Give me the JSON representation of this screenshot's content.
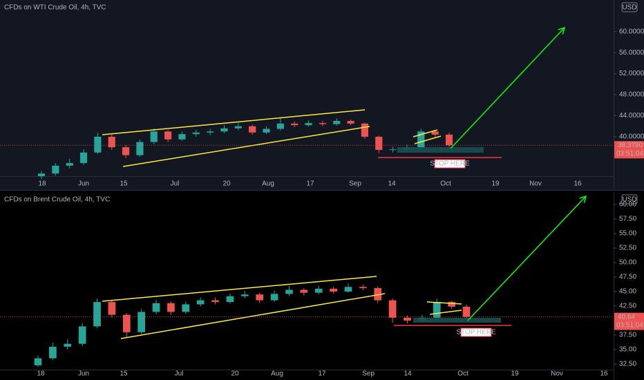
{
  "chart_data": [
    {
      "type": "candlestick",
      "title": "CFDs on WTI Crude Oil, 4h, TVC",
      "currency": "USD",
      "up_color": "#26a69a",
      "down_color": "#ef5350",
      "open": [
        32.5,
        33.0,
        34.5,
        35.0,
        37.0,
        40.0,
        38.0,
        36.5,
        39.0,
        41.0,
        39.5,
        40.5,
        40.8,
        41.0,
        41.6,
        42.0,
        40.8,
        41.5,
        42.5,
        42.2,
        42.6,
        42.4,
        43.0,
        42.5,
        40.0,
        37.5,
        37.6,
        38.0,
        41.0,
        40.4
      ],
      "high": [
        33.5,
        35.0,
        35.8,
        37.6,
        40.8,
        40.4,
        38.4,
        39.5,
        41.6,
        41.3,
        41.0,
        41.3,
        41.5,
        42.2,
        42.6,
        42.3,
        42.0,
        43.7,
        42.9,
        43.1,
        43.0,
        43.5,
        43.3,
        42.7,
        40.2,
        38.1,
        38.5,
        41.5,
        41.2,
        40.8
      ],
      "low": [
        32.0,
        32.6,
        34.0,
        34.6,
        36.7,
        37.5,
        35.9,
        36.2,
        38.6,
        39.0,
        39.2,
        40.0,
        40.3,
        40.7,
        41.2,
        40.4,
        40.5,
        41.2,
        41.8,
        41.9,
        42.0,
        42.1,
        42.2,
        39.6,
        36.9,
        37.0,
        37.3,
        37.8,
        40.0,
        38.1
      ],
      "close": [
        33.0,
        34.5,
        35.0,
        37.0,
        40.0,
        38.0,
        36.5,
        39.0,
        41.0,
        39.5,
        40.5,
        40.8,
        41.0,
        41.6,
        42.0,
        40.8,
        41.5,
        42.5,
        42.2,
        42.6,
        42.4,
        43.0,
        42.5,
        40.0,
        37.5,
        37.6,
        38.0,
        41.0,
        40.4,
        38.379
      ],
      "ylim": [
        32.5,
        66
      ],
      "yticks": [
        {
          "value": 40,
          "label": "40.0000"
        },
        {
          "value": 44,
          "label": "44.0000"
        },
        {
          "value": 48,
          "label": "48.0000"
        },
        {
          "value": 52,
          "label": "52.0000"
        },
        {
          "value": 56,
          "label": "56.0000"
        },
        {
          "value": 60,
          "label": "60.0000"
        }
      ],
      "x_labels": [
        "18",
        "Jun",
        "15",
        "Jul",
        "20",
        "Aug",
        "17",
        "Sep",
        "14",
        "Oct",
        "19",
        "Nov",
        "16"
      ],
      "last_price": {
        "value": 38.379,
        "label": "38.3790"
      },
      "countdown": "03:51:04",
      "annotation": "STOP HERE",
      "grid": false
    },
    {
      "type": "candlestick",
      "title": "CFDs on Brent Crude Oil, 4h, TVC",
      "currency": "USD",
      "up_color": "#26a69a",
      "down_color": "#ef5350",
      "open": [
        32.3,
        33.5,
        35.5,
        36.0,
        39.0,
        43.2,
        41.0,
        38.0,
        41.5,
        43.0,
        41.5,
        42.8,
        43.5,
        43.2,
        44.2,
        44.5,
        43.5,
        44.6,
        45.3,
        44.8,
        45.5,
        45.0,
        45.8,
        45.6,
        43.5,
        40.5,
        40.0,
        40.5,
        43.2,
        42.4
      ],
      "high": [
        34.0,
        36.2,
        36.8,
        39.6,
        43.8,
        43.5,
        41.3,
        42.0,
        43.6,
        43.3,
        43.3,
        44.0,
        44.0,
        44.7,
        45.1,
        44.8,
        45.2,
        46.0,
        45.6,
        46.0,
        45.8,
        46.4,
        46.2,
        45.9,
        43.8,
        40.9,
        41.0,
        43.8,
        43.4,
        42.8
      ],
      "low": [
        32.0,
        33.2,
        35.0,
        35.6,
        38.7,
        40.5,
        37.0,
        37.7,
        41.1,
        41.0,
        41.2,
        42.4,
        42.8,
        42.9,
        43.8,
        43.0,
        43.2,
        44.2,
        44.3,
        44.5,
        44.6,
        44.8,
        45.2,
        43.0,
        39.6,
        39.5,
        39.7,
        40.3,
        42.0,
        40.3
      ],
      "close": [
        33.5,
        35.5,
        36.0,
        39.0,
        43.2,
        41.0,
        38.0,
        41.5,
        43.0,
        41.5,
        42.8,
        43.5,
        43.2,
        44.2,
        44.5,
        43.5,
        44.6,
        45.3,
        44.8,
        45.5,
        45.0,
        45.8,
        45.6,
        43.5,
        40.5,
        40.0,
        40.5,
        43.2,
        42.4,
        40.64
      ],
      "ylim": [
        31.55,
        62.14
      ],
      "yticks": [
        {
          "value": 32.5,
          "label": "32.50"
        },
        {
          "value": 35,
          "label": "35.00"
        },
        {
          "value": 37.5,
          "label": "37.50"
        },
        {
          "value": 42.5,
          "label": "42.50"
        },
        {
          "value": 45,
          "label": "45.00"
        },
        {
          "value": 47.5,
          "label": "47.50"
        },
        {
          "value": 50,
          "label": "50.00"
        },
        {
          "value": 52.5,
          "label": "52.50"
        },
        {
          "value": 55,
          "label": "55.00"
        },
        {
          "value": 57.5,
          "label": "57.50"
        },
        {
          "value": 60,
          "label": "60.00"
        }
      ],
      "x_labels": [
        "18",
        "Jun",
        "15",
        "Jul",
        "20",
        "Aug",
        "17",
        "Sep",
        "14",
        "Oct",
        "19",
        "Nov",
        "16"
      ],
      "last_price": {
        "value": 40.64,
        "label": "40.64"
      },
      "countdown": "03:51:04",
      "annotation": "STOP HERE",
      "grid": false
    }
  ]
}
